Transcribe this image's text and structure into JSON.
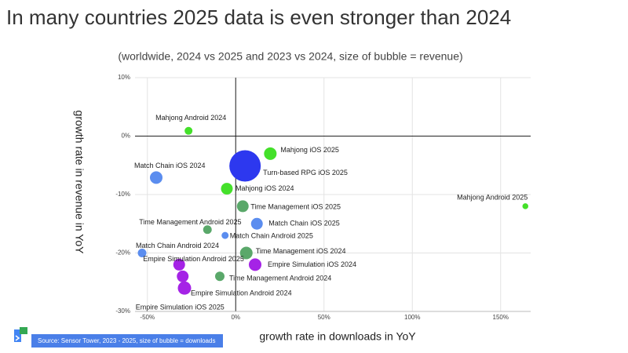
{
  "chart_data": {
    "type": "bubble",
    "title": "In many countries 2025 data is even stronger than 2024",
    "subtitle": "(worldwide, 2024 vs 2025 and 2023 vs 2024, size of bubble = revenue)",
    "x_label": "growth rate in downloads in YoY",
    "y_label": "growth rate in revenue in YoY",
    "source": "Source: Sensor Tower, 2023 - 2025, size of bubble = downloads",
    "xlim": [
      -57,
      167
    ],
    "ylim": [
      -30,
      10
    ],
    "xticks": [
      {
        "value": -50,
        "label": "-50%"
      },
      {
        "value": 0,
        "label": "0%"
      },
      {
        "value": 50,
        "label": "50%"
      },
      {
        "value": 100,
        "label": "100%"
      },
      {
        "value": 150,
        "label": "150%"
      }
    ],
    "yticks": [
      {
        "value": -30,
        "label": "-30%"
      },
      {
        "value": -20,
        "label": "-20%"
      },
      {
        "value": -10,
        "label": "-10%"
      },
      {
        "value": 0,
        "label": "0%"
      },
      {
        "value": 10,
        "label": "10%"
      }
    ],
    "grid": true,
    "series": [
      {
        "name": "Mahjong Android 2024",
        "color": "#44e02a",
        "x": [
          -26.7
        ],
        "values": [
          0.9
        ],
        "sizes": [
          25
        ]
      },
      {
        "name": "Mahjong iOS 2025",
        "color": "#44e02a",
        "x": [
          19.6
        ],
        "values": [
          -3
        ],
        "sizes": [
          64
        ]
      },
      {
        "name": "Turn-based RPG iOS 2025",
        "color": "#2d38ef",
        "x": [
          5.3
        ],
        "values": [
          -5.1
        ],
        "sizes": [
          400
        ]
      },
      {
        "name": "Match Chain iOS 2024",
        "color": "#5b8def",
        "x": [
          -45
        ],
        "values": [
          -7.1
        ],
        "sizes": [
          64
        ]
      },
      {
        "name": "Mahjong iOS 2024",
        "color": "#44e02a",
        "x": [
          -5
        ],
        "values": [
          -9
        ],
        "sizes": [
          56
        ]
      },
      {
        "name": "Mahjong Android 2025",
        "color": "#44e02a",
        "x": [
          164
        ],
        "values": [
          -12
        ],
        "sizes": [
          14
        ]
      },
      {
        "name": "Time Management iOS 2025",
        "color": "#5aa86a",
        "x": [
          4
        ],
        "values": [
          -12
        ],
        "sizes": [
          56
        ]
      },
      {
        "name": "Match Chain iOS 2025",
        "color": "#5b8def",
        "x": [
          12
        ],
        "values": [
          -15
        ],
        "sizes": [
          56
        ]
      },
      {
        "name": "Time Management Android 2025",
        "color": "#5aa86a",
        "x": [
          -16
        ],
        "values": [
          -16
        ],
        "sizes": [
          30
        ]
      },
      {
        "name": "Match Chain Android 2025",
        "color": "#5b8def",
        "x": [
          -6
        ],
        "values": [
          -17
        ],
        "sizes": [
          20
        ]
      },
      {
        "name": "Match Chain Android 2024",
        "color": "#5b8def",
        "x": [
          -53
        ],
        "values": [
          -20
        ],
        "sizes": [
          30
        ]
      },
      {
        "name": "Time Management iOS 2024",
        "color": "#5aa86a",
        "x": [
          6
        ],
        "values": [
          -20
        ],
        "sizes": [
          64
        ]
      },
      {
        "name": "Empire Simulation Android 2025",
        "color": "#a523e6",
        "x": [
          -32
        ],
        "values": [
          -22
        ],
        "sizes": [
          56
        ]
      },
      {
        "name": "Empire Simulation iOS 2024",
        "color": "#a523e6",
        "x": [
          11
        ],
        "values": [
          -22
        ],
        "sizes": [
          64
        ]
      },
      {
        "name": "Empire Simulation iOS 2025",
        "color": "#a523e6",
        "x": [
          -30
        ],
        "values": [
          -24
        ],
        "sizes": [
          56
        ]
      },
      {
        "name": "Time Management Android 2024",
        "color": "#5aa86a",
        "x": [
          -9
        ],
        "values": [
          -24
        ],
        "sizes": [
          36
        ]
      },
      {
        "name": "Empire Simulation Android 2024",
        "color": "#a523e6",
        "x": [
          -29
        ],
        "values": [
          -26
        ],
        "sizes": [
          72
        ]
      }
    ]
  }
}
